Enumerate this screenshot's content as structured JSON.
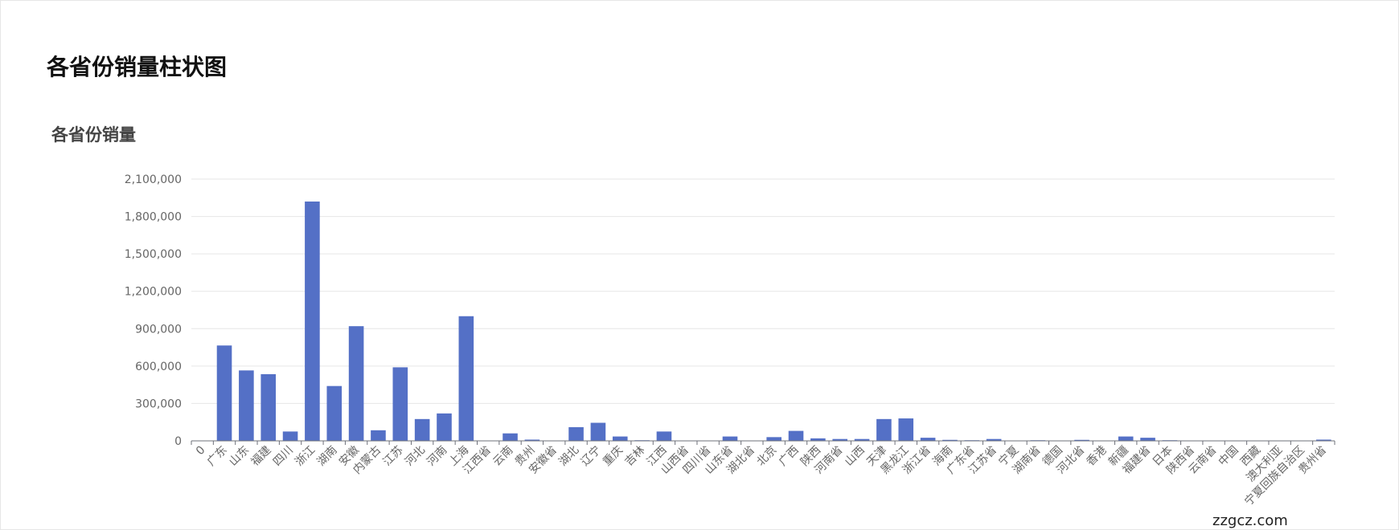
{
  "page": {
    "title": "各省份销量柱状图",
    "watermark": "zzgcz.com"
  },
  "chart_data": {
    "type": "bar",
    "title": "各省份销量",
    "xlabel": "",
    "ylabel": "",
    "ylim": [
      0,
      2100000
    ],
    "y_ticks": [
      0,
      300000,
      600000,
      900000,
      1200000,
      1500000,
      1800000,
      2100000
    ],
    "y_tick_labels": [
      "0",
      "300,000",
      "600,000",
      "900,000",
      "1,200,000",
      "1,500,000",
      "1,800,000",
      "2,100,000"
    ],
    "grid": true,
    "color": "#5470c6",
    "categories": [
      "0",
      "广东",
      "山东",
      "福建",
      "四川",
      "浙江",
      "湖南",
      "安徽",
      "内蒙古",
      "江苏",
      "河北",
      "河南",
      "上海",
      "江西省",
      "云南",
      "贵州",
      "安徽省",
      "湖北",
      "辽宁",
      "重庆",
      "吉林",
      "江西",
      "山西省",
      "四川省",
      "山东省",
      "湖北省",
      "北京",
      "广西",
      "陕西",
      "河南省",
      "山西",
      "天津",
      "黑龙江",
      "浙江省",
      "海南",
      "广东省",
      "江苏省",
      "宁夏",
      "湖南省",
      "德国",
      "河北省",
      "香港",
      "新疆",
      "福建省",
      "日本",
      "陕西省",
      "云南省",
      "中国",
      "西藏",
      "澳大利亚",
      "宁夏回族自治区",
      "贵州省"
    ],
    "values": [
      0,
      765000,
      565000,
      535000,
      75000,
      1920000,
      440000,
      920000,
      85000,
      590000,
      175000,
      220000,
      1000000,
      3000,
      60000,
      10000,
      3000,
      110000,
      145000,
      35000,
      5000,
      75000,
      2000,
      2000,
      35000,
      2000,
      30000,
      80000,
      20000,
      15000,
      15000,
      175000,
      180000,
      25000,
      8000,
      5000,
      15000,
      3000,
      5000,
      2000,
      8000,
      3000,
      35000,
      25000,
      5000,
      2000,
      2000,
      1000,
      1000,
      1000,
      2000,
      10000
    ]
  }
}
